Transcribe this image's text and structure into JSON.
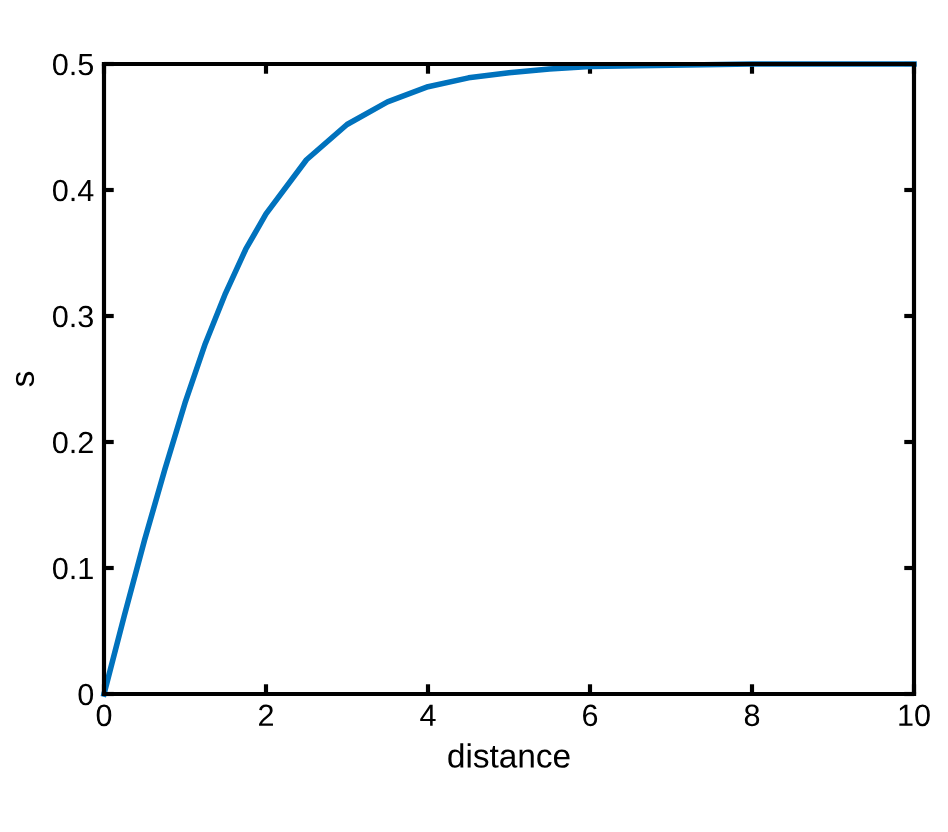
{
  "chart_data": {
    "type": "line",
    "xlabel": "distance",
    "ylabel": "s",
    "x": [
      0,
      0.25,
      0.5,
      0.75,
      1,
      1.25,
      1.5,
      1.75,
      2,
      2.5,
      3,
      3.5,
      4,
      4.5,
      5,
      5.5,
      6,
      7,
      8,
      9,
      10
    ],
    "series": [
      {
        "color": "#0072bd",
        "values": [
          0,
          0.062,
          0.122,
          0.178,
          0.231,
          0.278,
          0.318,
          0.353,
          0.381,
          0.424,
          0.452,
          0.47,
          0.482,
          0.489,
          0.493,
          0.496,
          0.498,
          0.499,
          0.5,
          0.5,
          0.5
        ]
      }
    ],
    "xlim": [
      0,
      10
    ],
    "xticks": [
      0,
      2,
      4,
      6,
      8,
      10
    ],
    "ylim": [
      0,
      0.5
    ],
    "yticks": [
      0,
      0.1,
      0.2,
      0.3,
      0.4,
      0.5
    ],
    "grid": false,
    "legend": false,
    "marker": "none",
    "line_style": "solid"
  }
}
